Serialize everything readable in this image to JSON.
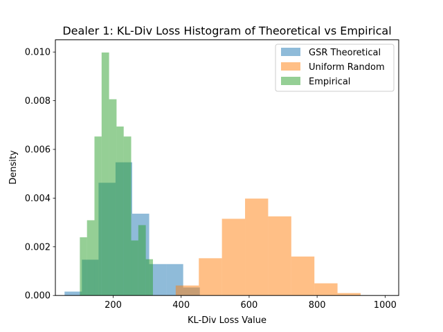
{
  "chart_data": {
    "type": "bar",
    "title": "Dealer 1: KL-Div Loss Histogram of Theoretical vs Empirical",
    "xlabel": "KL-Div Loss Value",
    "ylabel": "Density",
    "xlim": [
      30,
      1040
    ],
    "ylim": [
      0,
      0.0105
    ],
    "xticks": [
      200,
      400,
      600,
      800,
      1000
    ],
    "yticks": [
      0.0,
      0.002,
      0.004,
      0.006,
      0.008,
      0.01
    ],
    "ytick_labels": [
      "0.000",
      "0.002",
      "0.004",
      "0.006",
      "0.008",
      "0.010"
    ],
    "grid": false,
    "legend_position": "top-right",
    "series": [
      {
        "name": "GSR Theoretical",
        "color": "#1f77b4",
        "bins": [
          {
            "x0": 57,
            "x1": 108,
            "y": 0.00016
          },
          {
            "x0": 108,
            "x1": 157,
            "y": 0.00147
          },
          {
            "x0": 157,
            "x1": 207,
            "y": 0.00463
          },
          {
            "x0": 207,
            "x1": 256,
            "y": 0.00547
          },
          {
            "x0": 256,
            "x1": 306,
            "y": 0.00336
          },
          {
            "x0": 306,
            "x1": 356,
            "y": 0.00129
          },
          {
            "x0": 356,
            "x1": 406,
            "y": 0.00129
          },
          {
            "x0": 406,
            "x1": 455,
            "y": 0.00033
          }
        ]
      },
      {
        "name": "Uniform Random",
        "color": "#ff7f0e",
        "bins": [
          {
            "x0": 384,
            "x1": 452,
            "y": 0.00041
          },
          {
            "x0": 452,
            "x1": 520,
            "y": 0.00153
          },
          {
            "x0": 520,
            "x1": 588,
            "y": 0.00315
          },
          {
            "x0": 588,
            "x1": 656,
            "y": 0.00398
          },
          {
            "x0": 656,
            "x1": 724,
            "y": 0.00325
          },
          {
            "x0": 724,
            "x1": 792,
            "y": 0.0016
          },
          {
            "x0": 792,
            "x1": 860,
            "y": 0.0005
          },
          {
            "x0": 860,
            "x1": 928,
            "y": 0.0001
          },
          {
            "x0": 928,
            "x1": 996,
            "y": 0.0
          },
          {
            "x0": 996,
            "x1": 1000,
            "y": 0.0
          }
        ]
      },
      {
        "name": "Empirical",
        "color": "#2ca02c",
        "bins": [
          {
            "x0": 102,
            "x1": 123,
            "y": 0.00239
          },
          {
            "x0": 123,
            "x1": 145,
            "y": 0.00309
          },
          {
            "x0": 145,
            "x1": 166,
            "y": 0.00653
          },
          {
            "x0": 166,
            "x1": 188,
            "y": 0.00998
          },
          {
            "x0": 188,
            "x1": 210,
            "y": 0.00806
          },
          {
            "x0": 210,
            "x1": 231,
            "y": 0.00694
          },
          {
            "x0": 231,
            "x1": 253,
            "y": 0.00653
          },
          {
            "x0": 253,
            "x1": 274,
            "y": 0.00226
          },
          {
            "x0": 274,
            "x1": 296,
            "y": 0.00289
          },
          {
            "x0": 296,
            "x1": 317,
            "y": 0.00149
          }
        ]
      }
    ]
  }
}
